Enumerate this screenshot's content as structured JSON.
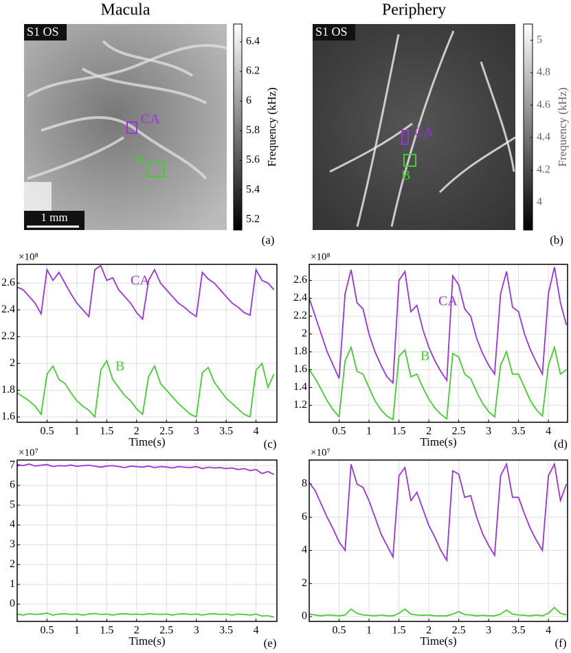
{
  "chart_data": [
    {
      "type": "image",
      "title": "Macula",
      "badge": "S1 OS",
      "scale_bar": "1 mm",
      "roi_labels": [
        "CA",
        "B"
      ],
      "roi_colors": [
        "#9b30e0",
        "#3fcf2a"
      ],
      "panel": "(a)",
      "colorbar": {
        "label": "Frequency (kHz)",
        "lim": [
          5.13,
          6.52
        ],
        "ticks": [
          5.2,
          5.4,
          5.6,
          5.8,
          6,
          6.2,
          6.4
        ]
      }
    },
    {
      "type": "image",
      "title": "Periphery",
      "badge": "S1 OS",
      "roi_labels": [
        "CA",
        "B"
      ],
      "roi_colors": [
        "#9b30e0",
        "#3fcf2a"
      ],
      "panel": "(b)",
      "colorbar": {
        "label": "Frequency (kHz)",
        "lim": [
          3.83,
          5.1
        ],
        "ticks": [
          4,
          4.2,
          4.4,
          4.6,
          4.8,
          5
        ]
      }
    },
    {
      "type": "line",
      "panel": "(c)",
      "xlabel": "Time(s)",
      "multiplier": "×10⁸",
      "xlim": [
        0,
        4.35
      ],
      "ylim": [
        1.56,
        2.74
      ],
      "xticks": [
        0.5,
        1,
        1.5,
        2,
        2.5,
        3,
        3.5,
        4
      ],
      "yticks": [
        1.6,
        1.8,
        2,
        2.2,
        2.4,
        2.6
      ],
      "grid": true,
      "x": [
        0,
        0.1,
        0.2,
        0.3,
        0.4,
        0.5,
        0.6,
        0.7,
        0.8,
        0.9,
        1,
        1.1,
        1.2,
        1.3,
        1.4,
        1.5,
        1.6,
        1.7,
        1.8,
        1.9,
        2,
        2.1,
        2.2,
        2.3,
        2.4,
        2.5,
        2.6,
        2.7,
        2.8,
        2.9,
        3,
        3.1,
        3.2,
        3.3,
        3.4,
        3.5,
        3.6,
        3.7,
        3.8,
        3.9,
        4,
        4.1,
        4.2,
        4.3
      ],
      "series": [
        {
          "name": "CA",
          "color": "#9b30e0",
          "values": [
            2.57,
            2.55,
            2.5,
            2.45,
            2.37,
            2.7,
            2.62,
            2.68,
            2.6,
            2.52,
            2.45,
            2.4,
            2.35,
            2.7,
            2.73,
            2.62,
            2.64,
            2.55,
            2.5,
            2.45,
            2.38,
            2.33,
            2.62,
            2.7,
            2.6,
            2.55,
            2.5,
            2.45,
            2.42,
            2.38,
            2.35,
            2.68,
            2.63,
            2.6,
            2.55,
            2.5,
            2.45,
            2.42,
            2.38,
            2.36,
            2.7,
            2.62,
            2.6,
            2.55
          ]
        },
        {
          "name": "B",
          "color": "#3fcf2a",
          "values": [
            1.78,
            1.75,
            1.72,
            1.68,
            1.62,
            1.92,
            1.98,
            1.88,
            1.85,
            1.78,
            1.72,
            1.68,
            1.65,
            1.6,
            1.95,
            2.02,
            1.88,
            1.82,
            1.76,
            1.72,
            1.66,
            1.62,
            1.9,
            1.98,
            1.85,
            1.8,
            1.75,
            1.7,
            1.66,
            1.62,
            1.6,
            1.93,
            1.97,
            1.86,
            1.8,
            1.74,
            1.7,
            1.66,
            1.62,
            1.6,
            1.95,
            2,
            1.82,
            1.92
          ]
        }
      ]
    },
    {
      "type": "line",
      "panel": "(d)",
      "xlabel": "Time(s)",
      "multiplier": "×10⁸",
      "xlim": [
        0,
        4.32
      ],
      "ylim": [
        1.01,
        2.78
      ],
      "xticks": [
        0.5,
        1,
        1.5,
        2,
        2.5,
        3,
        3.5,
        4
      ],
      "yticks": [
        1.2,
        1.4,
        1.6,
        1.8,
        2,
        2.2,
        2.4,
        2.6
      ],
      "grid": true,
      "x": [
        0,
        0.1,
        0.2,
        0.3,
        0.4,
        0.5,
        0.6,
        0.7,
        0.8,
        0.9,
        1,
        1.1,
        1.2,
        1.3,
        1.4,
        1.5,
        1.6,
        1.7,
        1.8,
        1.9,
        2,
        2.1,
        2.2,
        2.3,
        2.4,
        2.5,
        2.6,
        2.7,
        2.8,
        2.9,
        3,
        3.1,
        3.2,
        3.3,
        3.4,
        3.5,
        3.6,
        3.7,
        3.8,
        3.9,
        4,
        4.1,
        4.2,
        4.3
      ],
      "series": [
        {
          "name": "CA",
          "color": "#9b30e0",
          "values": [
            2.4,
            2.2,
            2,
            1.8,
            1.65,
            1.5,
            2.45,
            2.72,
            2.35,
            2.28,
            2,
            1.8,
            1.65,
            1.52,
            1.45,
            2.6,
            2.7,
            2.25,
            2.32,
            2.05,
            1.85,
            1.7,
            1.58,
            1.48,
            2.65,
            2.55,
            2.28,
            2.2,
            1.95,
            1.78,
            1.65,
            1.55,
            2.45,
            2.7,
            2.3,
            2.25,
            2,
            1.82,
            1.68,
            1.55,
            2.45,
            2.75,
            2.35,
            2.1
          ]
        },
        {
          "name": "B",
          "color": "#3fcf2a",
          "values": [
            1.6,
            1.5,
            1.38,
            1.25,
            1.15,
            1.07,
            1.7,
            1.85,
            1.58,
            1.55,
            1.4,
            1.25,
            1.15,
            1.08,
            1.04,
            1.75,
            1.82,
            1.52,
            1.55,
            1.4,
            1.27,
            1.17,
            1.1,
            1.05,
            1.78,
            1.74,
            1.55,
            1.5,
            1.35,
            1.22,
            1.13,
            1.07,
            1.65,
            1.8,
            1.55,
            1.55,
            1.4,
            1.25,
            1.15,
            1.08,
            1.65,
            1.85,
            1.55,
            1.6
          ]
        }
      ]
    },
    {
      "type": "line",
      "panel": "(e)",
      "xlabel": "Time(s)",
      "multiplier": "×10⁷",
      "xlim": [
        0,
        4.35
      ],
      "ylim": [
        -0.87,
        7.28
      ],
      "xticks": [
        0.5,
        1,
        1.5,
        2,
        2.5,
        3,
        3.5,
        4
      ],
      "yticks": [
        0,
        1,
        2,
        3,
        4,
        5,
        6,
        7
      ],
      "grid": true,
      "x": [
        0,
        0.1,
        0.2,
        0.3,
        0.4,
        0.5,
        0.6,
        0.7,
        0.8,
        0.9,
        1,
        1.1,
        1.2,
        1.3,
        1.4,
        1.5,
        1.6,
        1.7,
        1.8,
        1.9,
        2,
        2.1,
        2.2,
        2.3,
        2.4,
        2.5,
        2.6,
        2.7,
        2.8,
        2.9,
        3,
        3.1,
        3.2,
        3.3,
        3.4,
        3.5,
        3.6,
        3.7,
        3.8,
        3.9,
        4,
        4.1,
        4.2,
        4.3
      ],
      "series": [
        {
          "color": "#9b30e0",
          "values": [
            7.05,
            7,
            7.08,
            6.98,
            7.02,
            7.05,
            6.95,
            7,
            6.98,
            7.03,
            6.96,
            7,
            7.02,
            6.97,
            6.92,
            6.98,
            7,
            6.95,
            6.9,
            6.97,
            6.95,
            6.92,
            6.98,
            6.9,
            6.95,
            6.93,
            6.88,
            6.95,
            6.92,
            6.9,
            6.95,
            6.85,
            6.92,
            6.88,
            6.9,
            6.85,
            6.88,
            6.8,
            6.85,
            6.75,
            6.8,
            6.6,
            6.7,
            6.55
          ]
        },
        {
          "color": "#3fcf2a",
          "values": [
            -0.5,
            -0.55,
            -0.48,
            -0.52,
            -0.5,
            -0.45,
            -0.55,
            -0.5,
            -0.48,
            -0.52,
            -0.5,
            -0.55,
            -0.5,
            -0.47,
            -0.52,
            -0.5,
            -0.55,
            -0.5,
            -0.48,
            -0.52,
            -0.5,
            -0.53,
            -0.48,
            -0.5,
            -0.52,
            -0.5,
            -0.55,
            -0.5,
            -0.48,
            -0.52,
            -0.5,
            -0.55,
            -0.5,
            -0.48,
            -0.52,
            -0.5,
            -0.55,
            -0.5,
            -0.52,
            -0.55,
            -0.5,
            -0.6,
            -0.58,
            -0.65
          ]
        }
      ]
    },
    {
      "type": "line",
      "panel": "(f)",
      "xlabel": "Time(s)",
      "multiplier": "×10⁷",
      "xlim": [
        0,
        4.32
      ],
      "ylim": [
        -0.29,
        9.45
      ],
      "xticks": [
        0.5,
        1,
        1.5,
        2,
        2.5,
        3,
        3.5,
        4
      ],
      "yticks": [
        0,
        2,
        4,
        6,
        8
      ],
      "grid": true,
      "x": [
        0,
        0.1,
        0.2,
        0.3,
        0.4,
        0.5,
        0.6,
        0.7,
        0.8,
        0.9,
        1,
        1.1,
        1.2,
        1.3,
        1.4,
        1.5,
        1.6,
        1.7,
        1.8,
        1.9,
        2,
        2.1,
        2.2,
        2.3,
        2.4,
        2.5,
        2.6,
        2.7,
        2.8,
        2.9,
        3,
        3.1,
        3.2,
        3.3,
        3.4,
        3.5,
        3.6,
        3.7,
        3.8,
        3.9,
        4,
        4.1,
        4.2,
        4.3
      ],
      "series": [
        {
          "color": "#9b30e0",
          "values": [
            8.1,
            7.6,
            6.8,
            6,
            5.3,
            4.5,
            4,
            9.2,
            8,
            7.8,
            7,
            6,
            5,
            4.3,
            3.6,
            8.5,
            9,
            7,
            7.5,
            6.5,
            5.5,
            4.8,
            4,
            3.4,
            8.8,
            8.6,
            7.2,
            7.3,
            6,
            5,
            4.3,
            3.7,
            8.5,
            9.2,
            7.2,
            7.2,
            6.2,
            5.3,
            4.6,
            4,
            8.5,
            9.2,
            7,
            8
          ]
        },
        {
          "color": "#3fcf2a",
          "values": [
            0.15,
            0.1,
            0.05,
            0.1,
            0.08,
            0.05,
            0.1,
            0.45,
            0.2,
            0.1,
            0.08,
            0.05,
            0.1,
            0.05,
            0.05,
            0.2,
            0.45,
            0.15,
            0.1,
            0.08,
            0.1,
            0.05,
            0.05,
            0.05,
            0.15,
            0.3,
            0.12,
            0.1,
            0.05,
            0.08,
            0.05,
            0.05,
            0.15,
            0.4,
            0.15,
            0.1,
            0.08,
            0.05,
            0.1,
            0.05,
            0.2,
            0.55,
            0.2,
            0.1
          ]
        }
      ]
    }
  ]
}
